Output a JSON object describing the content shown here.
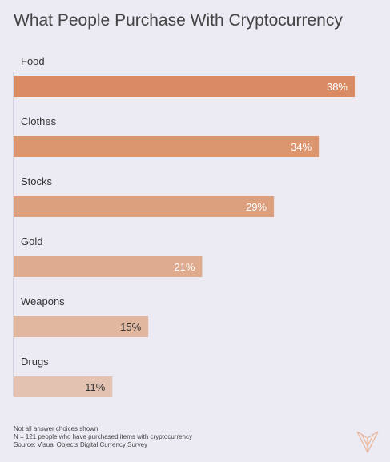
{
  "chart_data": {
    "type": "bar",
    "orientation": "horizontal",
    "title": "What People Purchase With Cryptocurrency",
    "categories": [
      "Food",
      "Clothes",
      "Stocks",
      "Gold",
      "Weapons",
      "Drugs"
    ],
    "values": [
      38,
      34,
      29,
      21,
      15,
      11
    ],
    "value_labels": [
      "38%",
      "34%",
      "29%",
      "21%",
      "15%",
      "11%"
    ],
    "unit": "%",
    "xlim": [
      0,
      38
    ],
    "grid": false,
    "legend": "none",
    "colors": [
      "#d98c63",
      "#db9670",
      "#dda07e",
      "#dfab8e",
      "#e1b7a0",
      "#e3c2b2"
    ]
  },
  "footer": {
    "note1": "Not all answer choices shown",
    "note2": "N = 121 people who have purchased items with cryptocurrency",
    "source": "Source: Visual Objects Digital Currency Survey"
  },
  "colors": {
    "background": "#ecebf4",
    "axis": "#b9b7c9",
    "logo": "#e8b79c",
    "label_light": "#ffffff",
    "label_dark": "#333333"
  },
  "logo_icon": "visual-objects-logo-icon"
}
